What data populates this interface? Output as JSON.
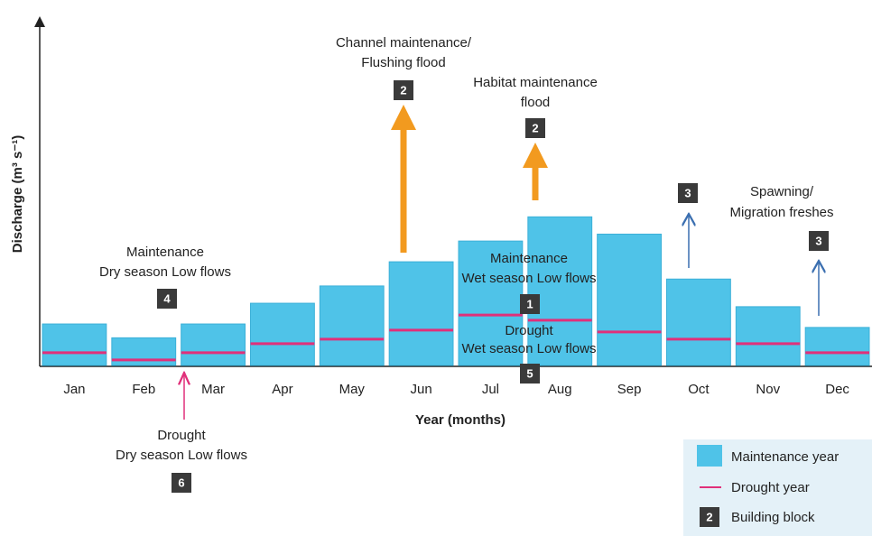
{
  "chart_data": {
    "type": "bar",
    "y_label": "Discharge (m³ s⁻¹)",
    "x_label": "Year (months)",
    "categories": [
      "Jan",
      "Feb",
      "Mar",
      "Apr",
      "May",
      "Jun",
      "Jul",
      "Aug",
      "Sep",
      "Oct",
      "Nov",
      "Dec"
    ],
    "ylim": [
      0,
      100
    ],
    "series": [
      {
        "name": "Maintenance year",
        "color": "#4fc3e8",
        "values": [
          12,
          8,
          12,
          18,
          23,
          30,
          36,
          43,
          38,
          25,
          17,
          11
        ]
      },
      {
        "name": "Drought year",
        "color": "#e0307a",
        "style": "line",
        "values": [
          3.7,
          1.6,
          3.7,
          6.3,
          7.6,
          10.2,
          14.6,
          13.1,
          9.7,
          7.6,
          6.3,
          3.7
        ]
      }
    ],
    "legend_block": {
      "symbol": "2",
      "label": "Building block"
    },
    "annotations": [
      {
        "lines": [
          "Channel maintenance/",
          "Flushing flood"
        ],
        "blocks": [
          "2"
        ]
      },
      {
        "lines": [
          "Habitat maintenance",
          "flood"
        ],
        "blocks": [
          "2"
        ]
      },
      {
        "lines": [
          "Spawning/",
          "Migration freshes"
        ],
        "blocks": [
          "3",
          "3"
        ]
      },
      {
        "lines": [
          "Maintenance",
          "Dry season Low flows"
        ],
        "blocks": [
          "4"
        ]
      },
      {
        "lines": [
          "Maintenance",
          "Wet season Low flows"
        ],
        "blocks": [
          "1"
        ]
      },
      {
        "lines": [
          "Drought",
          "Wet season Low flows"
        ],
        "blocks": [
          "5"
        ]
      },
      {
        "lines": [
          "Drought",
          "Dry season Low flows"
        ],
        "blocks": [
          "6"
        ]
      }
    ]
  }
}
